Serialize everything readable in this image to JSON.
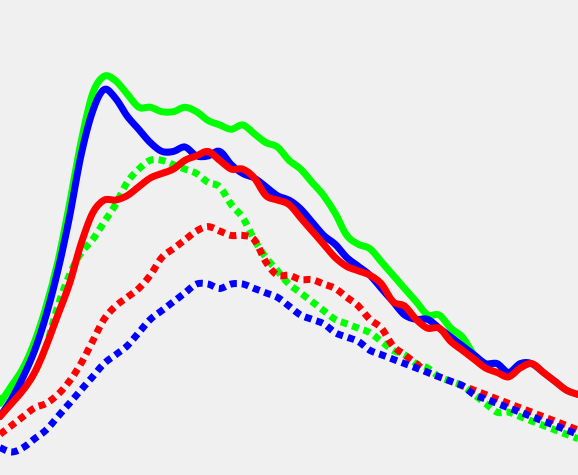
{
  "chart_data": {
    "type": "line",
    "background": "#f0f0f0",
    "xlim": [
      0,
      100
    ],
    "ylim": [
      0,
      100
    ],
    "grid": false,
    "legend": "none",
    "series": [
      {
        "key": "green-solid",
        "color": "#00ff00",
        "style": "solid",
        "x": [
          0,
          2,
          4,
          6,
          8,
          10,
          12,
          14,
          16,
          18,
          20,
          22,
          24,
          26,
          28,
          30,
          32,
          34,
          36,
          38,
          40,
          42,
          44,
          46,
          48,
          50,
          52,
          54,
          56,
          58,
          60,
          62,
          64,
          66,
          68,
          70,
          72,
          74,
          76,
          78,
          80,
          82,
          84,
          86,
          88,
          90,
          92,
          94,
          96,
          98,
          100
        ],
        "y": [
          11,
          15,
          19,
          25,
          33,
          43,
          56,
          70,
          81,
          85,
          84,
          81,
          78,
          78,
          77,
          77,
          78,
          77,
          75,
          74,
          73,
          74,
          72,
          70,
          69,
          66,
          64,
          61,
          58,
          54,
          49,
          47,
          46,
          43,
          40,
          37,
          34,
          31,
          31,
          28,
          26,
          22,
          20,
          20,
          18,
          20,
          20,
          18,
          16,
          14,
          13
        ]
      },
      {
        "key": "blue-solid",
        "color": "#0000ff",
        "style": "solid",
        "x": [
          0,
          2,
          4,
          6,
          8,
          10,
          12,
          14,
          16,
          18,
          20,
          22,
          24,
          26,
          28,
          30,
          32,
          34,
          36,
          38,
          40,
          42,
          44,
          46,
          48,
          50,
          52,
          54,
          56,
          58,
          60,
          62,
          64,
          66,
          68,
          70,
          72,
          74,
          76,
          78,
          80,
          82,
          84,
          86,
          88,
          90,
          92,
          94,
          96,
          98,
          100
        ],
        "y": [
          8,
          12,
          17,
          23,
          31,
          41,
          53,
          67,
          77,
          82,
          80,
          76,
          73,
          70,
          68,
          68,
          69,
          67,
          67,
          68,
          65,
          63,
          62,
          60,
          58,
          57,
          55,
          52,
          49,
          47,
          44,
          42,
          40,
          37,
          34,
          31,
          30,
          30,
          28,
          26,
          24,
          22,
          20,
          20,
          18,
          20,
          20,
          18,
          16,
          14,
          13
        ]
      },
      {
        "key": "red-solid",
        "color": "#ff0000",
        "style": "solid",
        "x": [
          0,
          2,
          4,
          6,
          8,
          10,
          12,
          14,
          16,
          18,
          20,
          22,
          24,
          26,
          28,
          30,
          32,
          34,
          36,
          38,
          40,
          42,
          44,
          46,
          48,
          50,
          52,
          54,
          56,
          58,
          60,
          62,
          64,
          66,
          68,
          70,
          72,
          74,
          76,
          78,
          80,
          82,
          84,
          86,
          88,
          90,
          92,
          94,
          96,
          98,
          100
        ],
        "y": [
          8,
          11,
          14,
          18,
          24,
          31,
          38,
          47,
          54,
          57,
          57,
          58,
          60,
          62,
          63,
          64,
          66,
          67,
          68,
          66,
          64,
          64,
          62,
          58,
          57,
          56,
          53,
          50,
          47,
          44,
          42,
          41,
          40,
          38,
          34,
          33,
          30,
          28,
          28,
          25,
          23,
          21,
          19,
          18,
          17,
          19,
          20,
          18,
          16,
          14,
          13
        ]
      },
      {
        "key": "green-dotted",
        "color": "#00ff00",
        "style": "dotted",
        "x": [
          0,
          2,
          4,
          6,
          8,
          10,
          12,
          14,
          16,
          18,
          20,
          22,
          24,
          26,
          28,
          30,
          32,
          34,
          36,
          38,
          40,
          42,
          44,
          46,
          48,
          50,
          52,
          54,
          56,
          58,
          60,
          62,
          64,
          66,
          68,
          70,
          72,
          74,
          76,
          78,
          80,
          82,
          84,
          86,
          88,
          90,
          92,
          94,
          96,
          98,
          100
        ],
        "y": [
          12,
          13,
          14,
          18,
          24,
          33,
          40,
          45,
          48,
          52,
          56,
          61,
          64,
          66,
          66,
          65,
          64,
          63,
          61,
          60,
          56,
          53,
          48,
          44,
          41,
          38,
          36,
          34,
          32,
          30,
          29,
          28,
          27,
          25,
          23,
          22,
          20,
          19,
          17,
          16,
          15,
          13,
          11,
          9,
          9,
          8,
          7,
          6,
          5,
          4,
          3
        ]
      },
      {
        "key": "red-dotted",
        "color": "#ff0000",
        "style": "dotted",
        "x": [
          0,
          2,
          4,
          6,
          8,
          10,
          12,
          14,
          16,
          18,
          20,
          22,
          24,
          26,
          28,
          30,
          32,
          34,
          36,
          38,
          40,
          42,
          44,
          46,
          48,
          50,
          52,
          54,
          56,
          58,
          60,
          62,
          64,
          66,
          68,
          70,
          72,
          74,
          76,
          78,
          80,
          82,
          84,
          86,
          88,
          90,
          92,
          94,
          96,
          98,
          100
        ],
        "y": [
          4,
          6,
          8,
          10,
          11,
          13,
          16,
          20,
          25,
          30,
          33,
          35,
          37,
          40,
          44,
          46,
          48,
          50,
          51,
          50,
          49,
          49,
          48,
          43,
          40,
          40,
          39,
          39,
          38,
          37,
          35,
          33,
          30,
          28,
          24,
          22,
          20,
          18,
          17,
          16,
          15,
          14,
          13,
          12,
          11,
          10,
          9,
          8,
          7,
          6,
          5
        ]
      },
      {
        "key": "blue-dotted",
        "color": "#0000ff",
        "style": "dotted",
        "x": [
          0,
          2,
          4,
          6,
          8,
          10,
          12,
          14,
          16,
          18,
          20,
          22,
          24,
          26,
          28,
          30,
          32,
          34,
          36,
          38,
          40,
          42,
          44,
          46,
          48,
          50,
          52,
          54,
          56,
          58,
          60,
          62,
          64,
          66,
          68,
          70,
          72,
          74,
          76,
          78,
          80,
          82,
          84,
          86,
          88,
          90,
          92,
          94,
          96,
          98,
          100
        ],
        "y": [
          1,
          0,
          1,
          3,
          5,
          8,
          11,
          14,
          17,
          20,
          22,
          24,
          27,
          30,
          32,
          34,
          36,
          38,
          38,
          37,
          38,
          38,
          37,
          36,
          35,
          33,
          31,
          30,
          29,
          27,
          26,
          25,
          23,
          22,
          21,
          20,
          19,
          18,
          17,
          16,
          15,
          13,
          12,
          11,
          10,
          9,
          8,
          7,
          6,
          5,
          4
        ]
      }
    ]
  }
}
